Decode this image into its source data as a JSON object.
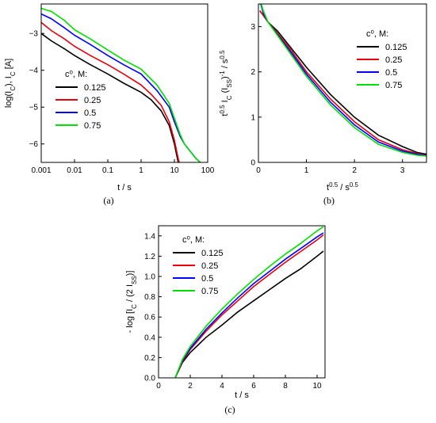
{
  "chart_data": [
    {
      "type": "line",
      "caption": "(a)",
      "xlabel": "t / s",
      "ylabel": "log(I_C), I_C [A]",
      "xscale": "log",
      "xlim": [
        0.001,
        100
      ],
      "ylim": [
        -6.5,
        -2.2
      ],
      "x_ticks": [
        "0.001",
        "0.01",
        "0.1",
        "1",
        "10",
        "100"
      ],
      "y_ticks": [
        "-3",
        "-4",
        "-5",
        "-6"
      ],
      "legend": {
        "title": "c⁰, M:",
        "placement": "lower-left"
      },
      "series": [
        {
          "name": "0.125",
          "color": "#000000",
          "x": [
            0.001,
            0.002,
            0.005,
            0.01,
            0.03,
            0.1,
            0.3,
            1,
            2,
            4,
            7,
            10,
            13,
            15
          ],
          "y": [
            -3.0,
            -3.2,
            -3.42,
            -3.6,
            -3.85,
            -4.1,
            -4.35,
            -4.6,
            -4.8,
            -5.1,
            -5.5,
            -6.0,
            -6.5,
            -6.6
          ]
        },
        {
          "name": "0.25",
          "color": "#e8000b",
          "x": [
            0.001,
            0.002,
            0.005,
            0.01,
            0.03,
            0.1,
            0.3,
            1,
            2,
            4,
            7,
            10,
            13,
            15
          ],
          "y": [
            -2.7,
            -2.92,
            -3.15,
            -3.35,
            -3.6,
            -3.85,
            -4.1,
            -4.4,
            -4.65,
            -4.95,
            -5.4,
            -5.9,
            -6.4,
            -6.6
          ]
        },
        {
          "name": "0.5",
          "color": "#0000ff",
          "x": [
            0.001,
            0.002,
            0.005,
            0.01,
            0.03,
            0.1,
            0.3,
            1,
            3,
            7,
            10,
            15,
            20,
            30,
            45,
            60
          ],
          "y": [
            -2.47,
            -2.6,
            -2.85,
            -3.05,
            -3.3,
            -3.6,
            -3.85,
            -4.1,
            -4.55,
            -5.0,
            -5.4,
            -5.8,
            -6.0,
            -6.2,
            -6.4,
            -6.5
          ]
        },
        {
          "name": "0.75",
          "color": "#00e000",
          "x": [
            0.001,
            0.002,
            0.005,
            0.01,
            0.03,
            0.1,
            0.3,
            1,
            3,
            7,
            10,
            15,
            20,
            30,
            45,
            60
          ],
          "y": [
            -2.32,
            -2.4,
            -2.65,
            -2.9,
            -3.15,
            -3.45,
            -3.72,
            -3.97,
            -4.4,
            -4.9,
            -5.3,
            -5.75,
            -6.0,
            -6.2,
            -6.4,
            -6.5
          ]
        }
      ]
    },
    {
      "type": "line",
      "caption": "(b)",
      "xlabel": "t^0.5 / s^0.5",
      "ylabel": "t^0.5 I_C (I_SS)^-1 / s^0.5",
      "xlim": [
        0,
        3.5
      ],
      "ylim": [
        0,
        3.5
      ],
      "x_ticks": [
        "0",
        "1",
        "2",
        "3"
      ],
      "y_ticks": [
        "0",
        "1",
        "2",
        "3"
      ],
      "legend": {
        "title": "c⁰, M:",
        "placement": "top-right"
      },
      "series": [
        {
          "name": "0.125",
          "color": "#000000",
          "x": [
            0.03,
            0.1,
            0.2,
            0.4,
            0.7,
            1.0,
            1.5,
            2.0,
            2.5,
            3.0,
            3.3,
            3.5
          ],
          "y": [
            3.35,
            3.25,
            3.1,
            2.9,
            2.5,
            2.1,
            1.5,
            1.0,
            0.6,
            0.35,
            0.22,
            0.18
          ]
        },
        {
          "name": "0.25",
          "color": "#e8000b",
          "x": [
            0.03,
            0.1,
            0.2,
            0.4,
            0.7,
            1.0,
            1.5,
            2.0,
            2.5,
            3.0,
            3.3,
            3.5
          ],
          "y": [
            3.35,
            3.25,
            3.1,
            2.85,
            2.45,
            2.0,
            1.4,
            0.9,
            0.5,
            0.28,
            0.2,
            0.16
          ]
        },
        {
          "name": "0.5",
          "color": "#0000ff",
          "x": [
            0.05,
            0.1,
            0.2,
            0.4,
            0.7,
            1.0,
            1.5,
            2.0,
            2.5,
            3.0,
            3.3,
            3.5
          ],
          "y": [
            3.5,
            3.3,
            3.1,
            2.82,
            2.4,
            1.95,
            1.33,
            0.83,
            0.45,
            0.25,
            0.18,
            0.15
          ]
        },
        {
          "name": "0.75",
          "color": "#00e000",
          "x": [
            0.06,
            0.1,
            0.2,
            0.4,
            0.7,
            1.0,
            1.5,
            2.0,
            2.5,
            3.0,
            3.3,
            3.5
          ],
          "y": [
            3.5,
            3.35,
            3.1,
            2.8,
            2.35,
            1.9,
            1.27,
            0.77,
            0.4,
            0.22,
            0.16,
            0.14
          ]
        }
      ]
    },
    {
      "type": "line",
      "caption": "(c)",
      "xlabel": "t / s",
      "ylabel": "- log [I_C / (2 I_SS)]",
      "xlim": [
        0,
        10.5
      ],
      "ylim": [
        0,
        1.5
      ],
      "x_ticks": [
        "0",
        "2",
        "4",
        "6",
        "8",
        "10"
      ],
      "y_ticks": [
        "0.0",
        "0.2",
        "0.4",
        "0.6",
        "0.8",
        "1.0",
        "1.2",
        "1.4"
      ],
      "legend": {
        "title": "c⁰, M:",
        "placement": "top-left"
      },
      "series": [
        {
          "name": "0.125",
          "color": "#000000",
          "x": [
            1.05,
            1.5,
            2,
            3,
            4,
            5,
            6,
            7,
            8,
            9,
            10,
            10.4
          ],
          "y": [
            0.0,
            0.15,
            0.25,
            0.4,
            0.52,
            0.65,
            0.76,
            0.87,
            0.98,
            1.08,
            1.2,
            1.25
          ]
        },
        {
          "name": "0.25",
          "color": "#e8000b",
          "x": [
            1.05,
            1.5,
            2,
            3,
            4,
            5,
            6,
            7,
            8,
            9,
            10,
            10.4
          ],
          "y": [
            0.0,
            0.16,
            0.28,
            0.46,
            0.62,
            0.76,
            0.9,
            1.02,
            1.14,
            1.25,
            1.36,
            1.41
          ]
        },
        {
          "name": "0.5",
          "color": "#0000ff",
          "x": [
            1.05,
            1.5,
            2,
            3,
            4,
            5,
            6,
            7,
            8,
            9,
            10,
            10.4
          ],
          "y": [
            0.0,
            0.17,
            0.29,
            0.48,
            0.64,
            0.79,
            0.93,
            1.05,
            1.17,
            1.28,
            1.39,
            1.43
          ]
        },
        {
          "name": "0.75",
          "color": "#00e000",
          "x": [
            1.05,
            1.5,
            2,
            3,
            4,
            5,
            6,
            7,
            8,
            9,
            10,
            10.4
          ],
          "y": [
            0.0,
            0.18,
            0.31,
            0.51,
            0.68,
            0.83,
            0.97,
            1.1,
            1.22,
            1.33,
            1.45,
            1.49
          ]
        }
      ]
    }
  ]
}
